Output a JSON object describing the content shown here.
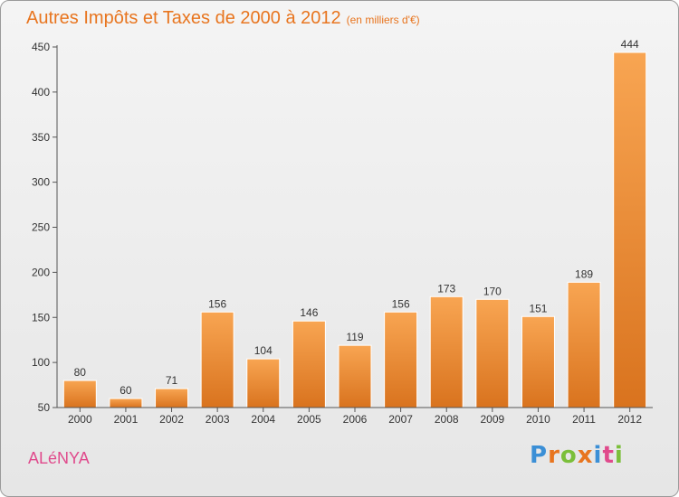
{
  "chart_data": {
    "type": "bar",
    "title": "Autres Impôts et Taxes de 2000 à 2012",
    "subtitle": "(en milliers d'€)",
    "categories": [
      "2000",
      "2001",
      "2002",
      "2003",
      "2004",
      "2005",
      "2006",
      "2007",
      "2008",
      "2009",
      "2010",
      "2011",
      "2012"
    ],
    "values": [
      80,
      60,
      71,
      156,
      104,
      146,
      119,
      156,
      173,
      170,
      151,
      189,
      444
    ],
    "ylim": [
      50,
      450
    ],
    "yticks": [
      50,
      100,
      150,
      200,
      250,
      300,
      350,
      400,
      450
    ],
    "grid": false,
    "colors": {
      "bar_top": "#f8a552",
      "bar_bottom": "#d9731e",
      "title": "#e8751f"
    }
  },
  "footer": {
    "place": "ALéNYA",
    "logo": [
      "P",
      "r",
      "o",
      "x",
      "i",
      "t",
      "i"
    ],
    "logo_colors": [
      "#3b8fd6",
      "#e8751f",
      "#7bbf3a",
      "#e8751f",
      "#3b8fd6",
      "#e04a8c",
      "#7bbf3a"
    ]
  }
}
